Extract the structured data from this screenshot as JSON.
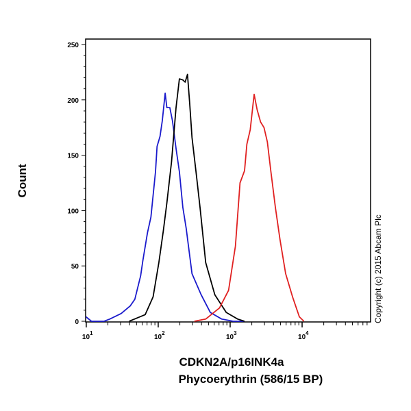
{
  "chart_data": {
    "type": "line",
    "title": "",
    "xlabel": [
      "CDKN2A/p16INK4a",
      "Phycoerythrin (586/15 BP)"
    ],
    "ylabel": "Count",
    "xscale": "log",
    "xlim": [
      9.8,
      89500
    ],
    "ylim": [
      0,
      250
    ],
    "grid": false,
    "legend": "none",
    "yticks": [
      "0",
      "50",
      "100",
      "150",
      "200",
      "250"
    ],
    "xticks": [
      {
        "value": 10,
        "base": "10",
        "exp": "1"
      },
      {
        "value": 100,
        "base": "10",
        "exp": "2"
      },
      {
        "value": 1000,
        "base": "10",
        "exp": "3"
      },
      {
        "value": 10000,
        "base": "10",
        "exp": "4"
      }
    ],
    "annotation": "Copyright (c) 2015 Abcam Plc",
    "series": [
      {
        "color": "#1a1acc",
        "x": [
          9.9,
          11.8,
          17.7,
          21.2,
          30.6,
          41,
          47.4,
          57,
          61.2,
          71,
          79.1,
          91.6,
          96.4,
          106,
          114,
          125,
          132,
          145,
          158,
          177,
          197,
          220,
          245,
          295,
          395,
          530,
          764,
          1099,
          1585
        ],
        "y": [
          4,
          0,
          0,
          2,
          7,
          14,
          20,
          41,
          55,
          80,
          94,
          135,
          158,
          167,
          181,
          206,
          193,
          193,
          181,
          156,
          135,
          103,
          84,
          43,
          24,
          8,
          2,
          0,
          0
        ]
      },
      {
        "color": "#000000",
        "x": [
          39.5,
          51,
          66,
          85,
          102,
          118,
          132,
          153,
          177,
          197,
          220,
          237,
          255,
          274,
          295,
          341,
          381,
          457,
          612,
          883,
          1273,
          1585
        ],
        "y": [
          0,
          3,
          6,
          22,
          53,
          82,
          107,
          144,
          193,
          219,
          218,
          216,
          223,
          197,
          166,
          131,
          103,
          53,
          24,
          8,
          2,
          0
        ]
      },
      {
        "color": "#e02020",
        "x": [
          318,
          457,
          710,
          951,
          1183,
          1370,
          1585,
          1706,
          1901,
          2153,
          2370,
          2645,
          2951,
          3289,
          3673,
          4254,
          4920,
          5906,
          7362,
          9162,
          10600
        ],
        "y": [
          0,
          2,
          12,
          28,
          68,
          125,
          136,
          160,
          173,
          205,
          191,
          180,
          175,
          162,
          136,
          103,
          74,
          43,
          22,
          4,
          0
        ]
      }
    ]
  }
}
